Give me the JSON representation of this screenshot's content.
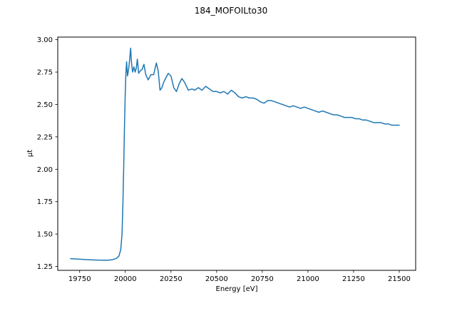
{
  "chart_data": {
    "type": "line",
    "title": "184_MOFOILto30",
    "xlabel": "Energy [eV]",
    "ylabel": "μt",
    "xlim": [
      19630,
      21590
    ],
    "ylim": [
      1.22,
      3.02
    ],
    "x_ticks": [
      19750,
      20000,
      20250,
      20500,
      20750,
      21000,
      21250,
      21500
    ],
    "y_ticks": [
      "1.25",
      "1.50",
      "1.75",
      "2.00",
      "2.25",
      "2.50",
      "2.75",
      "3.00"
    ],
    "grid": false,
    "series": [
      {
        "color": "#1f77b4",
        "points": [
          [
            19700,
            1.31
          ],
          [
            19750,
            1.306
          ],
          [
            19800,
            1.302
          ],
          [
            19850,
            1.299
          ],
          [
            19900,
            1.298
          ],
          [
            19930,
            1.302
          ],
          [
            19950,
            1.312
          ],
          [
            19965,
            1.33
          ],
          [
            19975,
            1.38
          ],
          [
            19982,
            1.5
          ],
          [
            19987,
            1.75
          ],
          [
            19991,
            2.0
          ],
          [
            19995,
            2.3
          ],
          [
            19999,
            2.55
          ],
          [
            20003,
            2.73
          ],
          [
            20007,
            2.83
          ],
          [
            20012,
            2.72
          ],
          [
            20018,
            2.77
          ],
          [
            20024,
            2.85
          ],
          [
            20029,
            2.935
          ],
          [
            20034,
            2.82
          ],
          [
            20040,
            2.75
          ],
          [
            20047,
            2.79
          ],
          [
            20054,
            2.75
          ],
          [
            20060,
            2.78
          ],
          [
            20066,
            2.85
          ],
          [
            20073,
            2.74
          ],
          [
            20082,
            2.76
          ],
          [
            20092,
            2.77
          ],
          [
            20102,
            2.81
          ],
          [
            20112,
            2.73
          ],
          [
            20125,
            2.69
          ],
          [
            20140,
            2.73
          ],
          [
            20155,
            2.73
          ],
          [
            20170,
            2.82
          ],
          [
            20180,
            2.76
          ],
          [
            20190,
            2.61
          ],
          [
            20200,
            2.63
          ],
          [
            20210,
            2.67
          ],
          [
            20220,
            2.7
          ],
          [
            20235,
            2.74
          ],
          [
            20250,
            2.72
          ],
          [
            20265,
            2.63
          ],
          [
            20280,
            2.6
          ],
          [
            20295,
            2.66
          ],
          [
            20310,
            2.7
          ],
          [
            20325,
            2.67
          ],
          [
            20345,
            2.61
          ],
          [
            20365,
            2.62
          ],
          [
            20380,
            2.61
          ],
          [
            20400,
            2.63
          ],
          [
            20420,
            2.61
          ],
          [
            20440,
            2.64
          ],
          [
            20460,
            2.62
          ],
          [
            20480,
            2.6
          ],
          [
            20500,
            2.6
          ],
          [
            20520,
            2.59
          ],
          [
            20540,
            2.6
          ],
          [
            20560,
            2.58
          ],
          [
            20580,
            2.61
          ],
          [
            20600,
            2.59
          ],
          [
            20620,
            2.56
          ],
          [
            20640,
            2.55
          ],
          [
            20660,
            2.56
          ],
          [
            20680,
            2.55
          ],
          [
            20700,
            2.55
          ],
          [
            20720,
            2.54
          ],
          [
            20740,
            2.52
          ],
          [
            20760,
            2.51
          ],
          [
            20780,
            2.53
          ],
          [
            20800,
            2.53
          ],
          [
            20820,
            2.52
          ],
          [
            20840,
            2.51
          ],
          [
            20860,
            2.5
          ],
          [
            20880,
            2.49
          ],
          [
            20900,
            2.48
          ],
          [
            20920,
            2.49
          ],
          [
            20940,
            2.48
          ],
          [
            20960,
            2.47
          ],
          [
            20980,
            2.48
          ],
          [
            21000,
            2.47
          ],
          [
            21020,
            2.46
          ],
          [
            21040,
            2.45
          ],
          [
            21060,
            2.44
          ],
          [
            21080,
            2.45
          ],
          [
            21100,
            2.44
          ],
          [
            21120,
            2.43
          ],
          [
            21140,
            2.42
          ],
          [
            21160,
            2.42
          ],
          [
            21180,
            2.41
          ],
          [
            21200,
            2.4
          ],
          [
            21220,
            2.4
          ],
          [
            21240,
            2.4
          ],
          [
            21260,
            2.39
          ],
          [
            21280,
            2.39
          ],
          [
            21300,
            2.38
          ],
          [
            21320,
            2.38
          ],
          [
            21340,
            2.37
          ],
          [
            21360,
            2.36
          ],
          [
            21380,
            2.36
          ],
          [
            21400,
            2.36
          ],
          [
            21420,
            2.35
          ],
          [
            21440,
            2.35
          ],
          [
            21460,
            2.34
          ],
          [
            21480,
            2.34
          ],
          [
            21500,
            2.34
          ]
        ]
      }
    ]
  }
}
